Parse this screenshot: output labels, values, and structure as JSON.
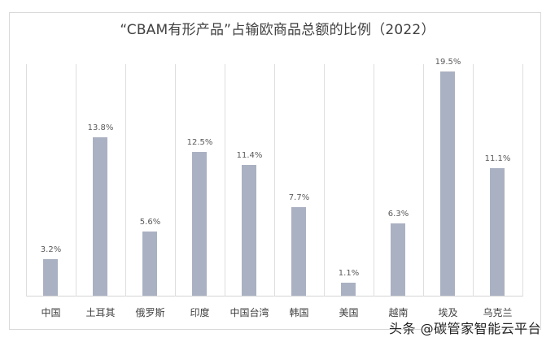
{
  "chart_data": {
    "type": "bar",
    "title": "“CBAM有形产品”占输欧商品总额的比例（2022）",
    "categories": [
      "中国",
      "土耳其",
      "俄罗斯",
      "印度",
      "中国台湾",
      "韩国",
      "美国",
      "越南",
      "埃及",
      "乌克兰"
    ],
    "values": [
      3.2,
      13.8,
      5.6,
      12.5,
      11.4,
      7.7,
      1.1,
      6.3,
      19.5,
      11.1
    ],
    "value_labels": [
      "3.2%",
      "13.8%",
      "5.6%",
      "12.5%",
      "11.4%",
      "7.7%",
      "1.1%",
      "6.3%",
      "19.5%",
      "11.1%"
    ],
    "xlabel": "",
    "ylabel": "",
    "ylim": [
      0,
      20
    ],
    "grid": "vertical category separators",
    "legend": "none",
    "bar_color": "#aab1c2"
  },
  "watermark": "头条 @碳管家智能云平台"
}
